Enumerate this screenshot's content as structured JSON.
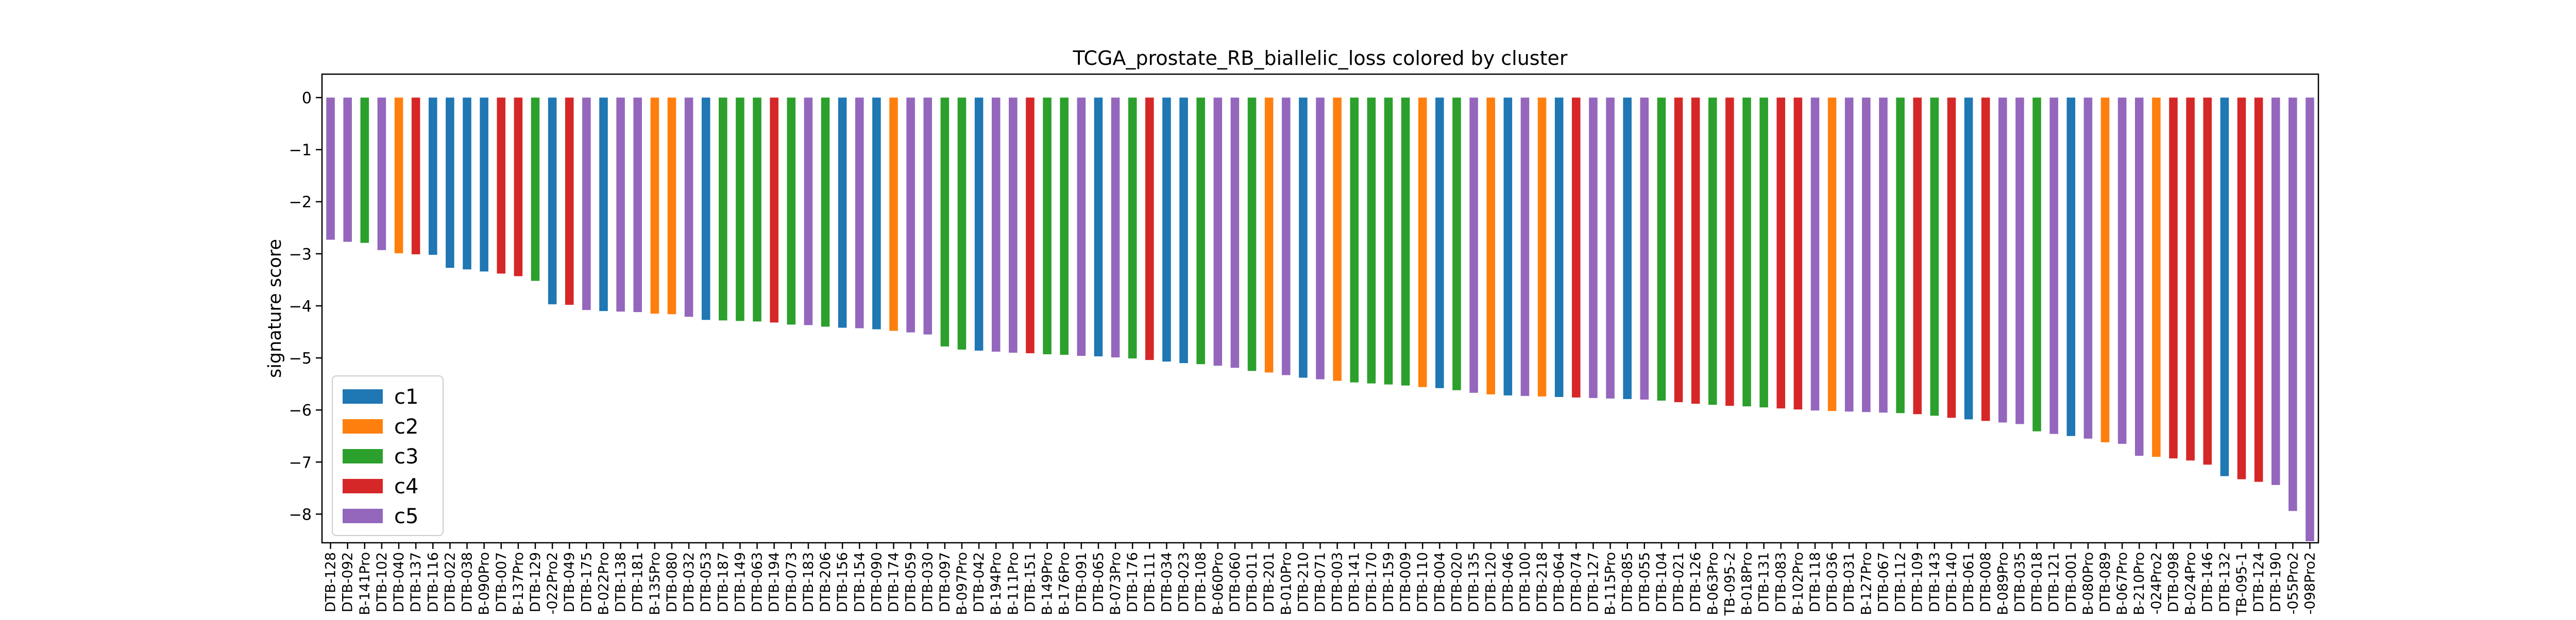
{
  "chart_data": {
    "type": "bar",
    "title": "TCGA_prostate_RB_biallelic_loss colored by cluster",
    "xlabel": "",
    "ylabel": "signature score",
    "ylim": [
      -8.55,
      0.45
    ],
    "yticks": [
      0,
      -1,
      -2,
      -3,
      -4,
      -5,
      -6,
      -7,
      -8
    ],
    "grid": false,
    "legend_position": "lower-left",
    "legend": [
      {
        "name": "c1",
        "color": "#1f77b4"
      },
      {
        "name": "c2",
        "color": "#ff7f0e"
      },
      {
        "name": "c3",
        "color": "#2ca02c"
      },
      {
        "name": "c4",
        "color": "#d62728"
      },
      {
        "name": "c5",
        "color": "#9467bd"
      }
    ],
    "categories": [
      "DTB-128",
      "DTB-092",
      "B-141Pro",
      "DTB-102",
      "DTB-040",
      "DTB-137",
      "DTB-116",
      "DTB-022",
      "DTB-038",
      "B-090Pro",
      "DTB-007",
      "B-137Pro",
      "DTB-129",
      "-022Pro2",
      "DTB-049",
      "DTB-175",
      "B-022Pro",
      "DTB-138",
      "DTB-181",
      "B-135Pro",
      "DTB-080",
      "DTB-032",
      "DTB-053",
      "DTB-187",
      "DTB-149",
      "DTB-063",
      "DTB-194",
      "DTB-073",
      "DTB-183",
      "DTB-206",
      "DTB-156",
      "DTB-154",
      "DTB-090",
      "DTB-174",
      "DTB-059",
      "DTB-030",
      "DTB-097",
      "B-097Pro",
      "DTB-042",
      "B-194Pro",
      "B-111Pro",
      "DTB-151",
      "B-149Pro",
      "B-176Pro",
      "DTB-091",
      "DTB-065",
      "B-073Pro",
      "DTB-176",
      "DTB-111",
      "DTB-034",
      "DTB-023",
      "DTB-108",
      "B-060Pro",
      "DTB-060",
      "DTB-011",
      "DTB-201",
      "B-010Pro",
      "DTB-210",
      "DTB-071",
      "DTB-003",
      "DTB-141",
      "DTB-170",
      "DTB-159",
      "DTB-009",
      "DTB-110",
      "DTB-004",
      "DTB-020",
      "DTB-135",
      "DTB-120",
      "DTB-046",
      "DTB-100",
      "DTB-218",
      "DTB-064",
      "DTB-074",
      "DTB-127",
      "B-115Pro",
      "DTB-085",
      "DTB-055",
      "DTB-104",
      "DTB-021",
      "DTB-126",
      "B-063Pro",
      "TB-095-2",
      "B-018Pro",
      "DTB-131",
      "DTB-083",
      "B-102Pro",
      "DTB-118",
      "DTB-036",
      "DTB-031",
      "B-127Pro",
      "DTB-067",
      "DTB-112",
      "DTB-109",
      "DTB-143",
      "DTB-140",
      "DTB-061",
      "DTB-008",
      "B-089Pro",
      "DTB-035",
      "DTB-018",
      "DTB-121",
      "DTB-001",
      "B-080Pro",
      "DTB-089",
      "B-067Pro",
      "B-210Pro",
      "-024Pro2",
      "DTB-098",
      "B-024Pro",
      "DTB-146",
      "DTB-132",
      "TB-095-1",
      "DTB-124",
      "DTB-190",
      "-055Pro2",
      "-098Pro2"
    ],
    "values": [
      -2.73,
      -2.77,
      -2.79,
      -2.93,
      -2.99,
      -3.01,
      -3.02,
      -3.27,
      -3.3,
      -3.34,
      -3.38,
      -3.43,
      -3.52,
      -3.97,
      -3.98,
      -4.08,
      -4.1,
      -4.11,
      -4.12,
      -4.15,
      -4.16,
      -4.21,
      -4.27,
      -4.28,
      -4.29,
      -4.3,
      -4.32,
      -4.36,
      -4.37,
      -4.4,
      -4.42,
      -4.43,
      -4.45,
      -4.48,
      -4.51,
      -4.55,
      -4.78,
      -4.84,
      -4.86,
      -4.88,
      -4.9,
      -4.91,
      -4.93,
      -4.94,
      -4.96,
      -4.97,
      -4.99,
      -5.01,
      -5.04,
      -5.07,
      -5.1,
      -5.12,
      -5.15,
      -5.19,
      -5.25,
      -5.28,
      -5.33,
      -5.38,
      -5.41,
      -5.44,
      -5.47,
      -5.49,
      -5.51,
      -5.53,
      -5.56,
      -5.58,
      -5.62,
      -5.67,
      -5.7,
      -5.72,
      -5.73,
      -5.74,
      -5.75,
      -5.76,
      -5.77,
      -5.78,
      -5.79,
      -5.8,
      -5.82,
      -5.85,
      -5.88,
      -5.9,
      -5.92,
      -5.93,
      -5.95,
      -5.97,
      -5.99,
      -6.01,
      -6.02,
      -6.03,
      -6.04,
      -6.05,
      -6.06,
      -6.08,
      -6.11,
      -6.15,
      -6.18,
      -6.21,
      -6.24,
      -6.27,
      -6.41,
      -6.46,
      -6.5,
      -6.55,
      -6.62,
      -6.65,
      -6.88,
      -6.9,
      -6.93,
      -6.97,
      -7.05,
      -7.27,
      -7.33,
      -7.38,
      -7.44,
      -7.94,
      -8.52
    ],
    "clusters": [
      "c5",
      "c5",
      "c3",
      "c5",
      "c2",
      "c4",
      "c1",
      "c1",
      "c1",
      "c1",
      "c4",
      "c4",
      "c3",
      "c1",
      "c4",
      "c5",
      "c1",
      "c5",
      "c5",
      "c2",
      "c2",
      "c5",
      "c1",
      "c3",
      "c3",
      "c3",
      "c4",
      "c3",
      "c5",
      "c3",
      "c1",
      "c5",
      "c1",
      "c2",
      "c5",
      "c5",
      "c3",
      "c3",
      "c1",
      "c5",
      "c5",
      "c4",
      "c3",
      "c3",
      "c5",
      "c1",
      "c5",
      "c3",
      "c4",
      "c1",
      "c1",
      "c3",
      "c5",
      "c5",
      "c3",
      "c2",
      "c5",
      "c1",
      "c5",
      "c2",
      "c3",
      "c3",
      "c3",
      "c3",
      "c2",
      "c1",
      "c3",
      "c5",
      "c2",
      "c1",
      "c5",
      "c2",
      "c1",
      "c4",
      "c5",
      "c5",
      "c1",
      "c5",
      "c3",
      "c4",
      "c4",
      "c3",
      "c4",
      "c3",
      "c3",
      "c4",
      "c4",
      "c5",
      "c2",
      "c5",
      "c5",
      "c5",
      "c3",
      "c4",
      "c3",
      "c4",
      "c1",
      "c4",
      "c5",
      "c5",
      "c3",
      "c5",
      "c1",
      "c5",
      "c2",
      "c5",
      "c5",
      "c2",
      "c4",
      "c4",
      "c4",
      "c1",
      "c4",
      "c4",
      "c5",
      "c5",
      "c5"
    ]
  }
}
